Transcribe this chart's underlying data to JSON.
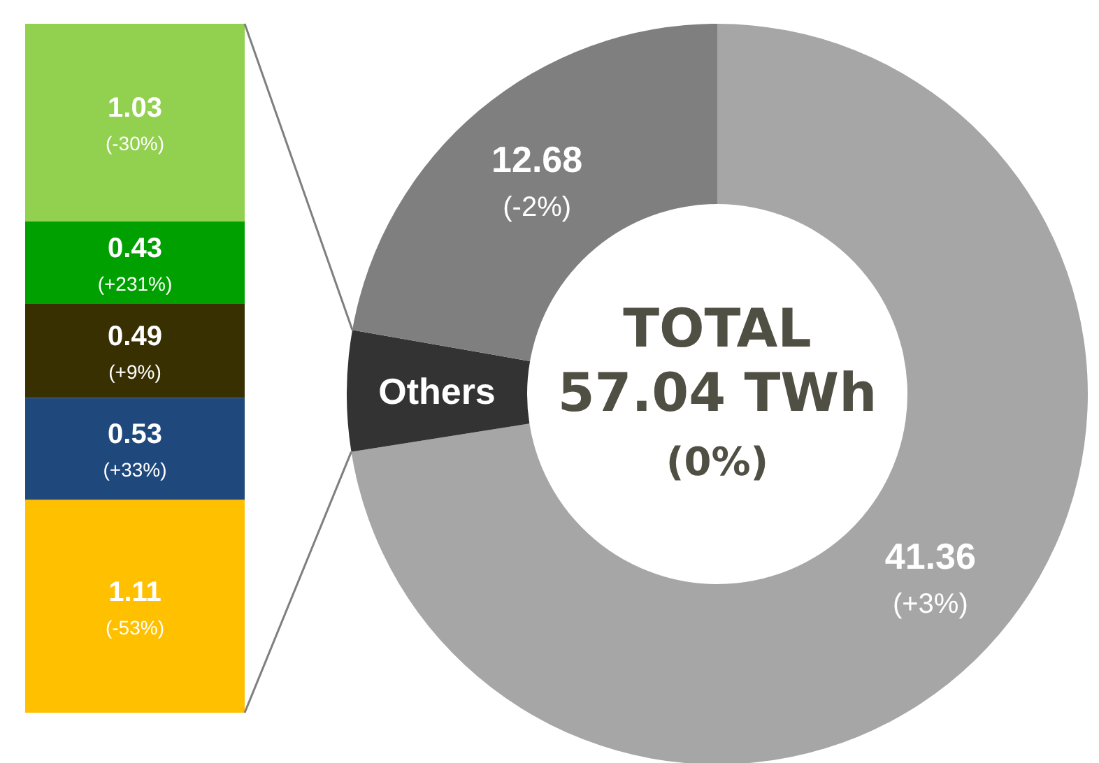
{
  "chart_data": [
    {
      "type": "bar",
      "stacked": true,
      "categories": [
        null
      ],
      "series": [
        {
          "color": "#ffc000",
          "values": [
            1.11
          ],
          "value_labels": [
            "1.11\n(-53%)"
          ]
        },
        {
          "color": "#1f497d",
          "values": [
            0.53
          ],
          "value_labels": [
            "0.53\n(+33%)"
          ]
        },
        {
          "color": "#383000",
          "values": [
            0.49
          ],
          "value_labels": [
            "0.49\n(+9%)"
          ]
        },
        {
          "color": "#00a000",
          "values": [
            0.43
          ],
          "value_labels": [
            "0.43\n(+231%)"
          ]
        },
        {
          "color": "#92d050",
          "values": [
            1.03
          ],
          "value_labels": [
            "1.03\n(-30%)"
          ]
        }
      ]
    },
    {
      "type": "donut",
      "categories": [
        null,
        "Others",
        null
      ],
      "values": [
        41.36,
        3.0,
        12.68
      ],
      "colors": [
        "#a6a6a6",
        "#333333",
        "#7f7f7f"
      ],
      "value_labels": [
        "41.36\n(+3%)",
        null,
        "12.68\n(-2%)"
      ],
      "annotations": [
        "TOTAL",
        "57.04 TWh",
        "(0%)"
      ]
    }
  ]
}
